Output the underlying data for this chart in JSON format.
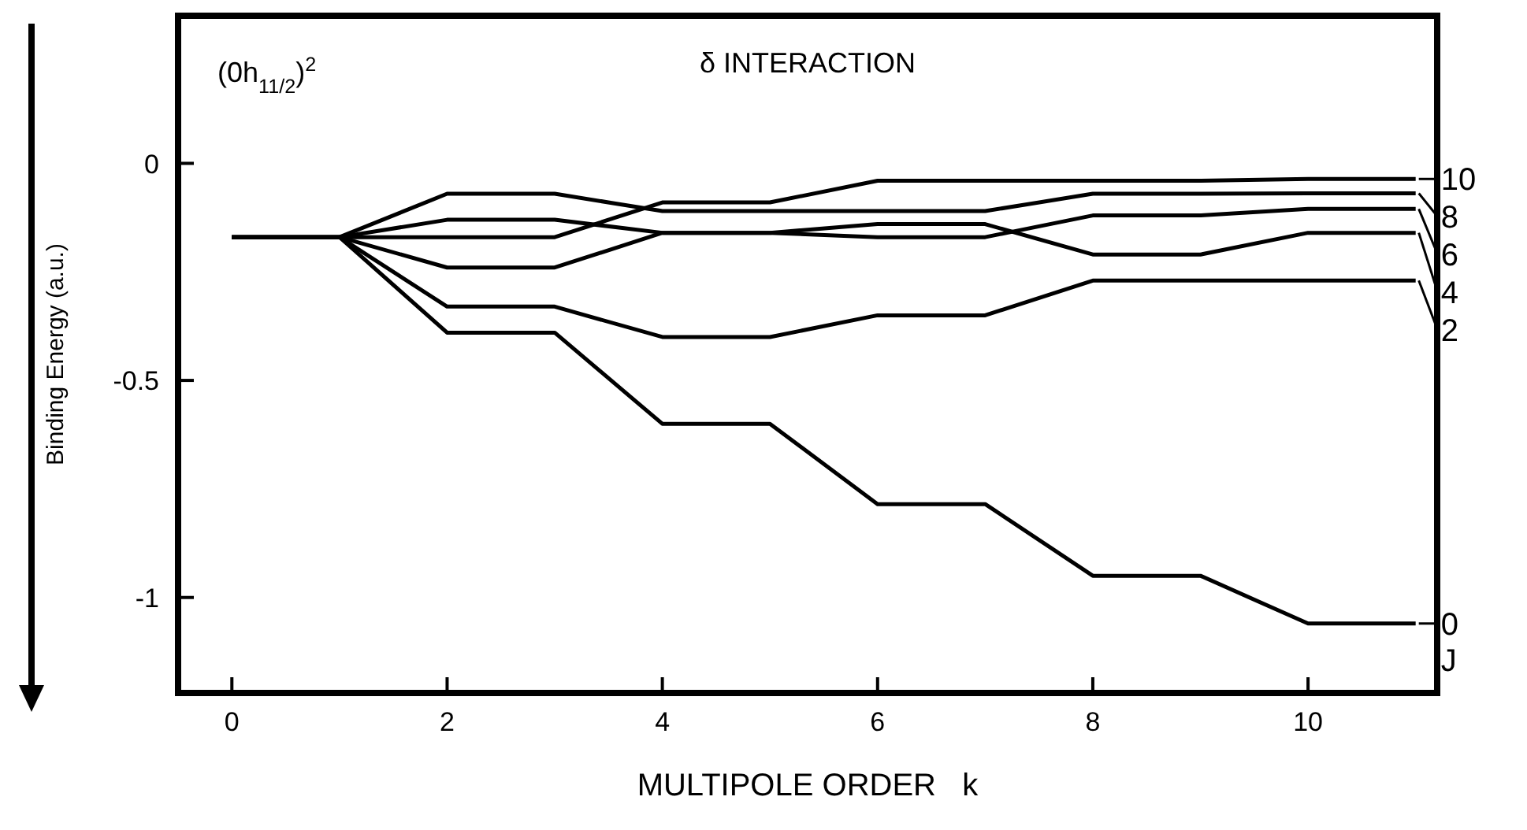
{
  "chart_data": {
    "type": "line",
    "title": "δ INTERACTION",
    "xlabel": "MULTIPOLE ORDER   k",
    "ylabel": "Binding Energy (a.u.)",
    "annotations": [
      "(0h$_{11/2}$)$^{2}$",
      "J"
    ],
    "x": [
      0,
      1,
      2,
      3,
      4,
      5,
      6,
      7,
      8,
      9,
      10,
      11
    ],
    "series": [
      {
        "name": "10",
        "color": "#000000",
        "values": [
          -0.17,
          -0.17,
          -0.17,
          -0.17,
          -0.09,
          -0.09,
          -0.04,
          -0.04,
          -0.04,
          -0.04,
          -0.036,
          -0.036
        ]
      },
      {
        "name": "8",
        "color": "#000000",
        "values": [
          -0.17,
          -0.17,
          -0.07,
          -0.07,
          -0.11,
          -0.11,
          -0.11,
          -0.11,
          -0.07,
          -0.07,
          -0.069,
          -0.069
        ]
      },
      {
        "name": "6",
        "color": "#000000",
        "values": [
          -0.17,
          -0.17,
          -0.13,
          -0.13,
          -0.16,
          -0.16,
          -0.17,
          -0.17,
          -0.12,
          -0.12,
          -0.105,
          -0.105
        ]
      },
      {
        "name": "4",
        "color": "#000000",
        "values": [
          -0.17,
          -0.17,
          -0.24,
          -0.24,
          -0.16,
          -0.16,
          -0.14,
          -0.14,
          -0.21,
          -0.21,
          -0.16,
          -0.16
        ]
      },
      {
        "name": "2",
        "color": "#000000",
        "values": [
          -0.17,
          -0.17,
          -0.33,
          -0.33,
          -0.4,
          -0.4,
          -0.35,
          -0.35,
          -0.27,
          -0.27,
          -0.27,
          -0.27
        ]
      },
      {
        "name": "0",
        "color": "#000000",
        "values": [
          -0.17,
          -0.17,
          -0.39,
          -0.39,
          -0.6,
          -0.6,
          -0.785,
          -0.785,
          -0.95,
          -0.95,
          -1.06,
          -1.06
        ]
      }
    ],
    "xlim": [
      -0.5,
      11.2
    ],
    "ylim": [
      -1.22,
      0.34
    ],
    "xticks": [
      0,
      2,
      4,
      6,
      8,
      10
    ],
    "yticks": [
      0,
      {
        "value": -0.5,
        "label": "-0.5"
      },
      -1
    ],
    "grid": false,
    "legend": "right",
    "marker": "none",
    "line_style": "solid"
  }
}
